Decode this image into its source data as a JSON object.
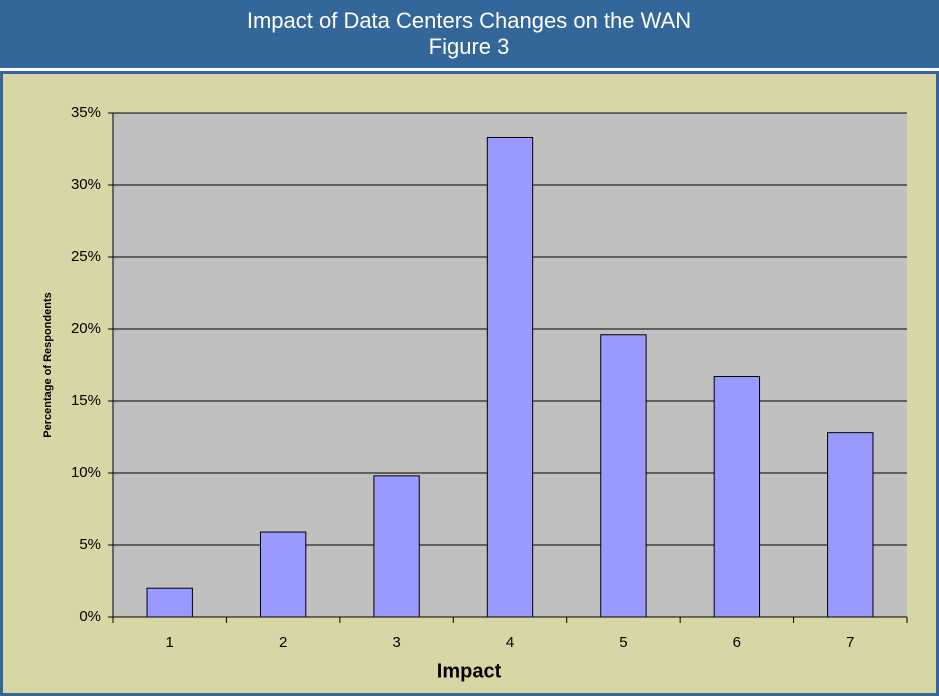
{
  "chart_data": {
    "type": "bar",
    "title": "Impact of Data Centers Changes on the WAN",
    "subtitle": "Figure 3",
    "x_label": "Impact",
    "y_label": "Percentage of Respondents",
    "categories": [
      "1",
      "2",
      "3",
      "4",
      "5",
      "6",
      "7"
    ],
    "values": [
      2.0,
      5.9,
      9.8,
      33.3,
      19.6,
      16.7,
      12.8
    ],
    "color": "#9999ff",
    "ylim": [
      0,
      35
    ],
    "yticks": [
      {
        "value": 0,
        "label": "0%"
      },
      {
        "value": 5,
        "label": "5%"
      },
      {
        "value": 10,
        "label": "10%"
      },
      {
        "value": 15,
        "label": "15%"
      },
      {
        "value": 20,
        "label": "20%"
      },
      {
        "value": 25,
        "label": "25%"
      },
      {
        "value": 30,
        "label": "30%"
      },
      {
        "value": 35,
        "label": "35%"
      }
    ],
    "grid": true
  }
}
